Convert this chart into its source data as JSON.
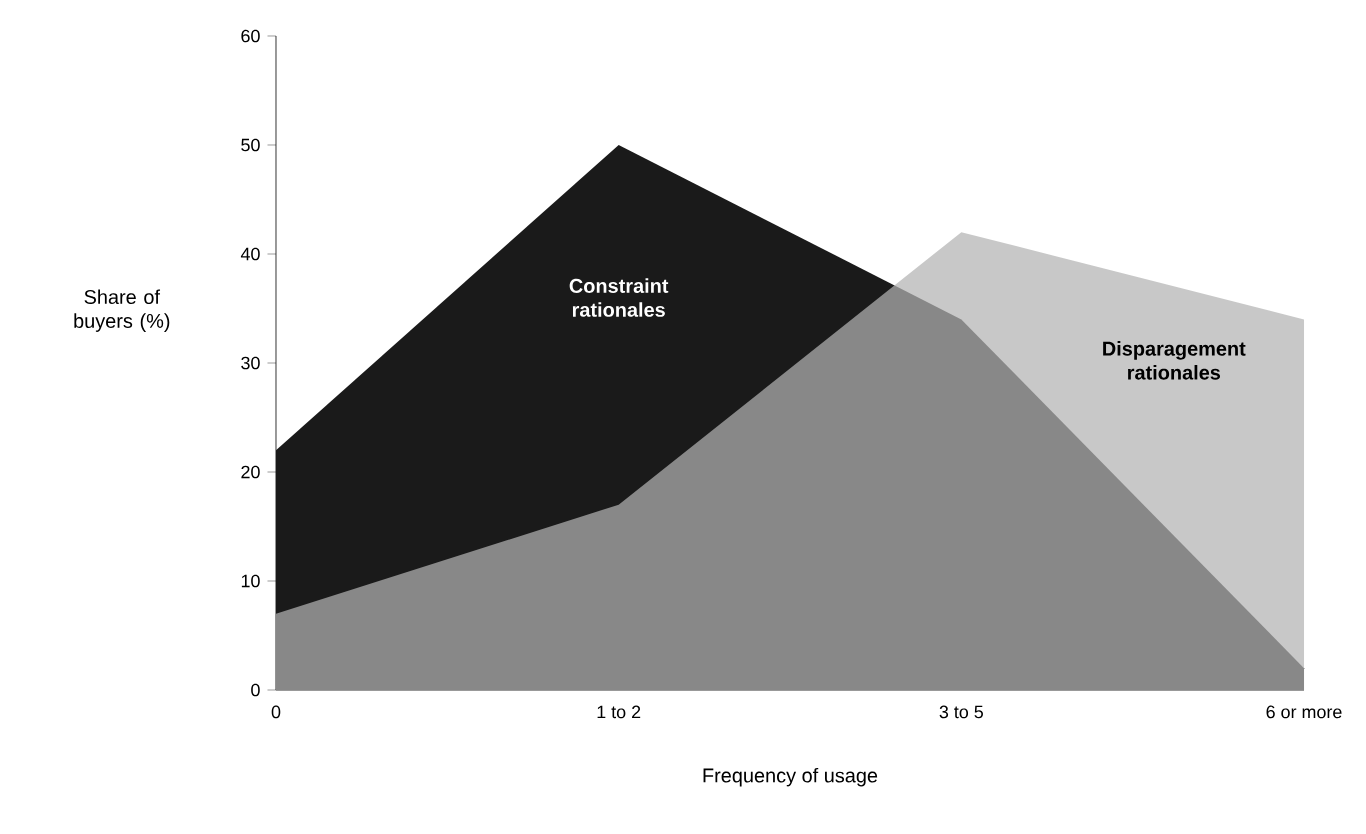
{
  "chart_data": {
    "type": "area",
    "xlabel": "Frequency of usage",
    "ylabel": "Share of buyers (%)",
    "categories": [
      "0",
      "1 to 2",
      "3 to 5",
      "6 or more"
    ],
    "series": [
      {
        "name": "Constraint rationales",
        "color": "#1a1a1a",
        "values": [
          22,
          50,
          34,
          2
        ]
      },
      {
        "name": "Disparagement rationales",
        "color": "#b3b3b3",
        "values": [
          7,
          17,
          42,
          34
        ]
      }
    ],
    "ylim": [
      0,
      60
    ],
    "yticks": [
      0,
      10,
      20,
      30,
      40,
      50,
      60
    ],
    "grid": false
  }
}
